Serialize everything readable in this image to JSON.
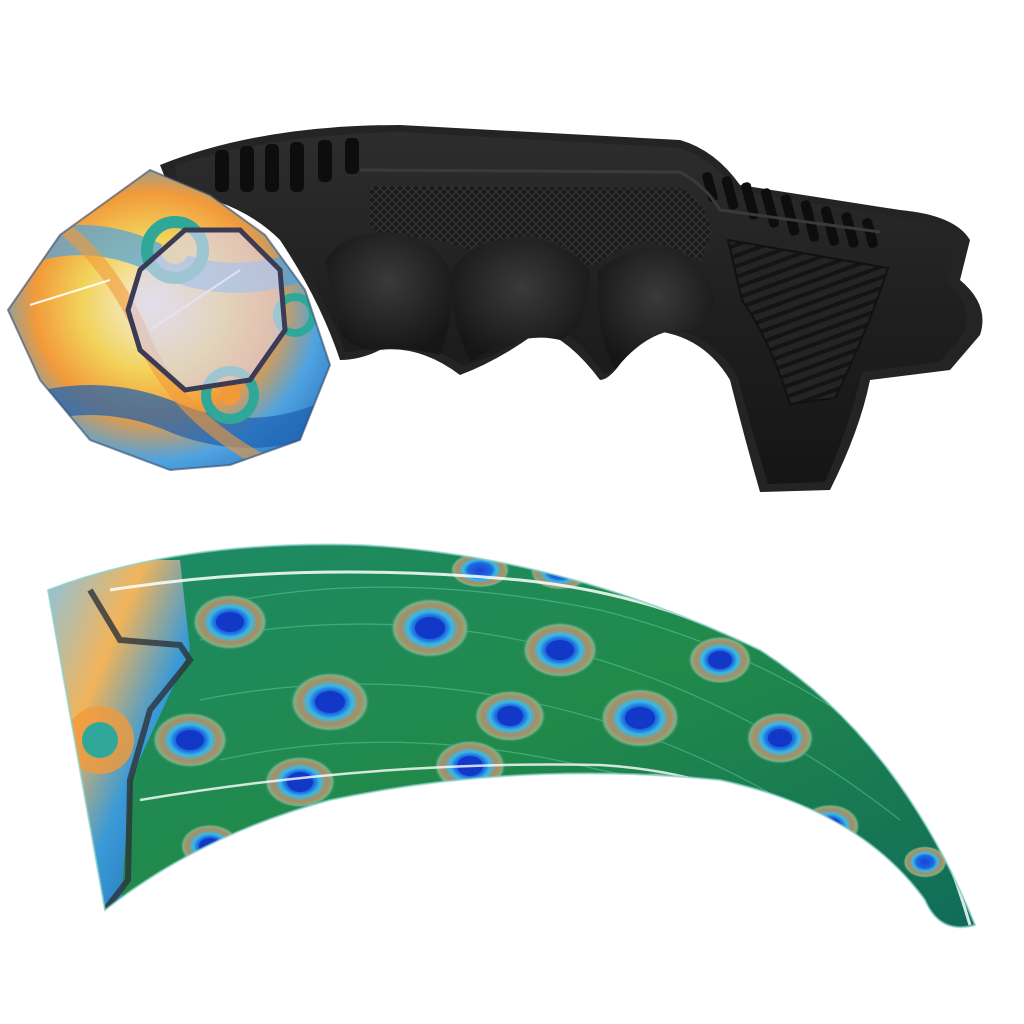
{
  "image": {
    "background": "#ffffff",
    "handle_color": "#222222",
    "handle_shadow": "#0e0e0e",
    "peacock_colors": {
      "teal": "#138a72",
      "green": "#1f7d3c",
      "blue": "#1c4fd6",
      "cyan": "#38b9e6",
      "bronze": "#b08a5a"
    },
    "marble_colors": {
      "blue": "#4fa3e0",
      "orange": "#f29a3a",
      "yellow": "#f2d35a",
      "teal": "#2fa89a"
    }
  }
}
